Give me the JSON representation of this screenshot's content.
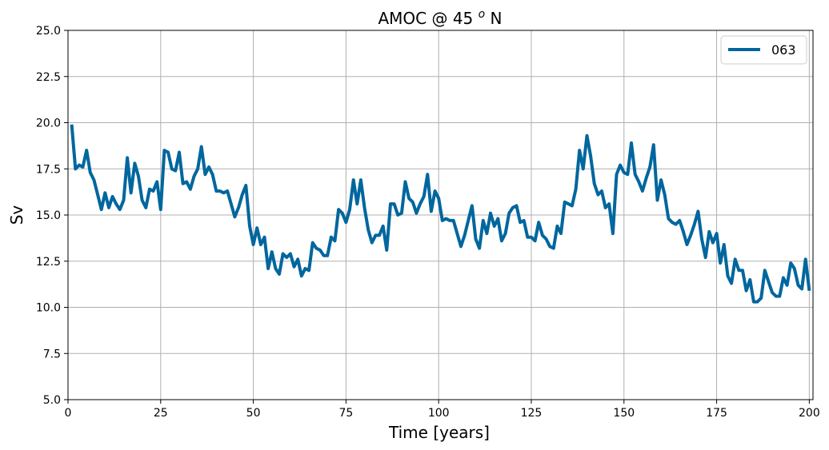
{
  "chart_data": {
    "type": "line",
    "title": "AMOC @ 45 ",
    "title_sup": "o",
    "title_suffix": " N",
    "xlabel": "Time [years]",
    "ylabel": "Sv",
    "xlim": [
      0,
      201
    ],
    "ylim": [
      5.0,
      25.0
    ],
    "xticks": [
      0,
      25,
      50,
      75,
      100,
      125,
      150,
      175,
      200
    ],
    "xtick_labels": [
      "0",
      "25",
      "50",
      "75",
      "100",
      "125",
      "150",
      "175",
      "200"
    ],
    "yticks": [
      5.0,
      7.5,
      10.0,
      12.5,
      15.0,
      17.5,
      20.0,
      22.5,
      25.0
    ],
    "ytick_labels": [
      "5.0",
      "7.5",
      "10.0",
      "12.5",
      "15.0",
      "17.5",
      "20.0",
      "22.5",
      "25.0"
    ],
    "grid": true,
    "legend_position": "top-right",
    "series": [
      {
        "name": "063",
        "color": "#00669e",
        "x": [
          1,
          2,
          3,
          4,
          5,
          6,
          7,
          8,
          9,
          10,
          11,
          12,
          13,
          14,
          15,
          16,
          17,
          18,
          19,
          20,
          21,
          22,
          23,
          24,
          25,
          26,
          27,
          28,
          29,
          30,
          31,
          32,
          33,
          34,
          35,
          36,
          37,
          38,
          39,
          40,
          41,
          42,
          43,
          44,
          45,
          46,
          47,
          48,
          49,
          50,
          51,
          52,
          53,
          54,
          55,
          56,
          57,
          58,
          59,
          60,
          61,
          62,
          63,
          64,
          65,
          66,
          67,
          68,
          69,
          70,
          71,
          72,
          73,
          74,
          75,
          76,
          77,
          78,
          79,
          80,
          81,
          82,
          83,
          84,
          85,
          86,
          87,
          88,
          89,
          90,
          91,
          92,
          93,
          94,
          95,
          96,
          97,
          98,
          99,
          100,
          101,
          102,
          103,
          104,
          105,
          106,
          107,
          108,
          109,
          110,
          111,
          112,
          113,
          114,
          115,
          116,
          117,
          118,
          119,
          120,
          121,
          122,
          123,
          124,
          125,
          126,
          127,
          128,
          129,
          130,
          131,
          132,
          133,
          134,
          135,
          136,
          137,
          138,
          139,
          140,
          141,
          142,
          143,
          144,
          145,
          146,
          147,
          148,
          149,
          150,
          151,
          152,
          153,
          154,
          155,
          156,
          157,
          158,
          159,
          160,
          161,
          162,
          163,
          164,
          165,
          166,
          167,
          168,
          169,
          170,
          171,
          172,
          173,
          174,
          175,
          176,
          177,
          178,
          179,
          180,
          181,
          182,
          183,
          184,
          185,
          186,
          187,
          188,
          189,
          190,
          191,
          192,
          193,
          194,
          195,
          196,
          197,
          198,
          199,
          200
        ],
        "y": [
          19.9,
          17.5,
          17.7,
          17.6,
          18.5,
          17.3,
          16.9,
          16.1,
          15.3,
          16.2,
          15.4,
          16.0,
          15.6,
          15.3,
          15.8,
          18.1,
          16.2,
          17.8,
          17.1,
          15.8,
          15.4,
          16.4,
          16.3,
          16.8,
          15.3,
          18.5,
          18.4,
          17.5,
          17.4,
          18.4,
          16.7,
          16.8,
          16.4,
          17.1,
          17.5,
          18.7,
          17.2,
          17.6,
          17.2,
          16.3,
          16.3,
          16.2,
          16.3,
          15.6,
          14.9,
          15.4,
          16.1,
          16.6,
          14.4,
          13.4,
          14.3,
          13.4,
          13.8,
          12.1,
          13.0,
          12.1,
          11.8,
          12.9,
          12.7,
          12.9,
          12.2,
          12.6,
          11.7,
          12.1,
          12.0,
          13.5,
          13.2,
          13.1,
          12.8,
          12.8,
          13.8,
          13.6,
          15.3,
          15.1,
          14.6,
          15.3,
          16.9,
          15.6,
          16.9,
          15.4,
          14.2,
          13.5,
          13.9,
          13.9,
          14.4,
          13.1,
          15.6,
          15.6,
          15.0,
          15.1,
          16.8,
          15.9,
          15.7,
          15.1,
          15.6,
          16.0,
          17.2,
          15.2,
          16.3,
          15.9,
          14.7,
          14.8,
          14.7,
          14.7,
          14.0,
          13.3,
          13.9,
          14.7,
          15.5,
          13.7,
          13.2,
          14.7,
          14.0,
          15.1,
          14.4,
          14.8,
          13.6,
          14.0,
          15.1,
          15.4,
          15.5,
          14.6,
          14.7,
          13.8,
          13.8,
          13.6,
          14.6,
          13.9,
          13.7,
          13.3,
          13.2,
          14.4,
          14.0,
          15.7,
          15.6,
          15.5,
          16.4,
          18.5,
          17.5,
          19.3,
          18.2,
          16.7,
          16.1,
          16.3,
          15.4,
          15.6,
          14.0,
          17.2,
          17.7,
          17.3,
          17.2,
          18.9,
          17.2,
          16.8,
          16.3,
          17.0,
          17.6,
          18.8,
          15.8,
          16.9,
          16.1,
          14.8,
          14.6,
          14.5,
          14.7,
          14.1,
          13.4,
          13.9,
          14.5,
          15.2,
          13.7,
          12.7,
          14.1,
          13.5,
          14.0,
          12.4,
          13.4,
          11.7,
          11.3,
          12.6,
          12.0,
          12.0,
          10.9,
          11.5,
          10.3,
          10.3,
          10.5,
          12.0,
          11.4,
          10.8,
          10.6,
          10.6,
          11.6,
          11.2,
          12.4,
          12.1,
          11.2,
          11.0,
          12.6,
          10.9
        ]
      }
    ]
  }
}
